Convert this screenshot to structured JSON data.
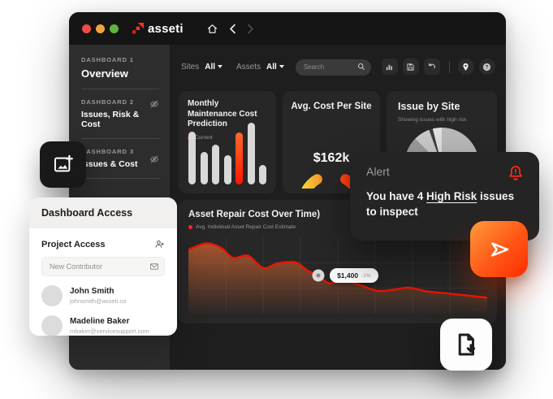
{
  "window": {
    "logo_text": "asseti",
    "traffic_lights": {
      "close": "#ef4e44",
      "minimize": "#f1a33c",
      "maximize": "#5fb63f"
    }
  },
  "sidebar": {
    "items": [
      {
        "label": "DASHBOARD 1",
        "title": "Overview",
        "hidden_toggle": false
      },
      {
        "label": "DASHBOARD 2",
        "title": "Issues, Risk & Cost",
        "hidden_toggle": true
      },
      {
        "label": "DASHBOARD 3",
        "title": "Issues & Cost",
        "hidden_toggle": true
      }
    ]
  },
  "toolbar": {
    "sites_label": "Sites",
    "sites_value": "All",
    "assets_label": "Assets",
    "assets_value": "All",
    "search_placeholder": "Search"
  },
  "cards": {
    "maintenance": {
      "title": "Monthly Maintenance Cost Prediction",
      "legend": "Current"
    },
    "avg_cost": {
      "title": "Avg. Cost Per Site",
      "value": "$162k"
    },
    "issue_by_site": {
      "title": "Issue by Site",
      "subtitle": "Showing issues with high risk"
    },
    "repair_cost": {
      "title": "Asset Repair Cost Over Time)",
      "legend": "Avg. Individual Asset Repair Cost Estimate",
      "tooltip_value": "$1,400",
      "tooltip_delta": "-1%"
    }
  },
  "alert": {
    "title": "Alert",
    "message_prefix": "You have 4 ",
    "message_highlight": "High Risk",
    "message_suffix": " issues to inspect"
  },
  "access_panel": {
    "title": "Dashboard Access",
    "section_title": "Project Access",
    "input_placeholder": "New Contributor",
    "users": [
      {
        "name": "John Smith",
        "email": "johnsmith@asseti.co"
      },
      {
        "name": "Madeline Baker",
        "email": "mbaker@servicesupport.com"
      }
    ]
  },
  "colors": {
    "accent_red": "#ff2d1a",
    "bar_default": "#d8d8d8",
    "bar_highlight_gradient": [
      "#ff6a2a",
      "#ff1500"
    ],
    "gauge_gradient": [
      "#f2e33c",
      "#f7a72e",
      "#fb5a1c",
      "#ff1c03"
    ],
    "line_red": "#ee1402",
    "area_fill": "#ff7332"
  },
  "chart_data": [
    {
      "id": "maintenance_bars",
      "type": "bar",
      "title": "Monthly Maintenance Cost Prediction",
      "legend": [
        "Current"
      ],
      "values": [
        86,
        52,
        64,
        48,
        84,
        100,
        32
      ],
      "highlight_index": 4,
      "note": "relative heights in percent; no axis labels shown"
    },
    {
      "id": "avg_cost_gauge",
      "type": "gauge",
      "title": "Avg. Cost Per Site",
      "value_label": "$162k",
      "note": "three-quarter arc gauge, yellow-to-red gradient, open at bottom"
    },
    {
      "id": "issue_pie",
      "type": "pie",
      "title": "Issue by Site",
      "slices": [
        {
          "color": "#b9b9b9",
          "deg": 95
        },
        {
          "color": "#8f8f8f",
          "deg": 85
        },
        {
          "color": "#787878",
          "deg": 80
        },
        {
          "color": "#9b9b9b",
          "deg": 55
        },
        {
          "color": "#c9c9c9",
          "deg": 25
        },
        {
          "color": "#3f3f3f",
          "deg": 6
        },
        {
          "color": "#e0e0e0",
          "deg": 14
        }
      ],
      "note": "grayscale slices, no labels visible; lower half occluded by alert card"
    },
    {
      "id": "repair_line",
      "type": "area",
      "title": "Asset Repair Cost Over Time)",
      "legend": [
        "Avg. Individual Asset Repair Cost Estimate"
      ],
      "points": [
        [
          0,
          0.16
        ],
        [
          0.06,
          0.08
        ],
        [
          0.11,
          0.14
        ],
        [
          0.15,
          0.27
        ],
        [
          0.2,
          0.24
        ],
        [
          0.25,
          0.4
        ],
        [
          0.3,
          0.34
        ],
        [
          0.36,
          0.33
        ],
        [
          0.4,
          0.44
        ],
        [
          0.435,
          0.5
        ],
        [
          0.47,
          0.6
        ],
        [
          0.52,
          0.57
        ],
        [
          0.57,
          0.62
        ],
        [
          0.63,
          0.7
        ],
        [
          0.68,
          0.69
        ],
        [
          0.74,
          0.66
        ],
        [
          0.8,
          0.71
        ],
        [
          0.88,
          0.74
        ],
        [
          1,
          0.79
        ]
      ],
      "marker": [
        0.435,
        0.5
      ],
      "marker_value": "$1,400",
      "marker_delta": "-1%",
      "grid": true,
      "note": "x/y as fractions of plot box (y=0 top); declining trend, no tick labels shown"
    }
  ]
}
